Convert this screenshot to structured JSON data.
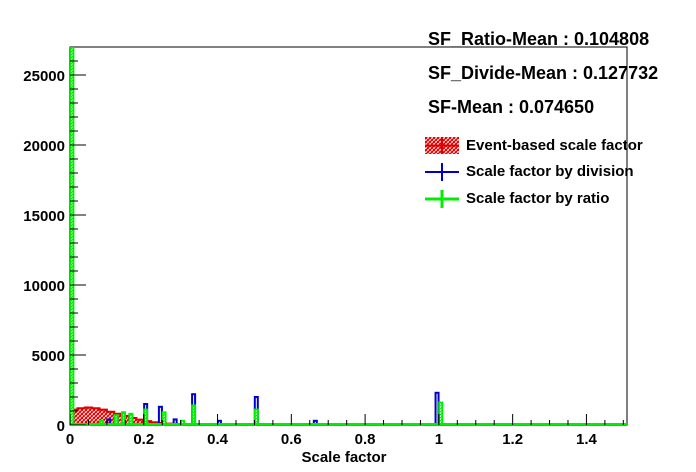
{
  "stats": {
    "ratio_mean": "SF_Ratio-Mean : 0.104808",
    "divide_mean": "SF_Divide-Mean : 0.127732",
    "sf_mean": "SF-Mean : 0.074650"
  },
  "legend": [
    {
      "label": "Event-based scale factor",
      "color": "#dd0000",
      "style": "hatched-box"
    },
    {
      "label": "Scale factor by division",
      "color": "#0000cc",
      "style": "cross"
    },
    {
      "label": "Scale factor by ratio",
      "color": "#00ee00",
      "style": "cross"
    }
  ],
  "chart_data": {
    "type": "histogram",
    "xlabel": "Scale factor",
    "ylabel": "",
    "xlim": [
      0,
      1.51
    ],
    "ylim": [
      0,
      27000
    ],
    "x_ticks": [
      "0",
      "0.2",
      "0.4",
      "0.6",
      "0.8",
      "1",
      "1.2",
      "1.4"
    ],
    "y_ticks": [
      "0",
      "5000",
      "10000",
      "15000",
      "20000",
      "25000"
    ],
    "series": [
      {
        "name": "Event-based scale factor",
        "color": "#dd0000",
        "bins": [
          {
            "x": 0.01,
            "y": 1100
          },
          {
            "x": 0.03,
            "y": 1200
          },
          {
            "x": 0.05,
            "y": 1250
          },
          {
            "x": 0.07,
            "y": 1200
          },
          {
            "x": 0.09,
            "y": 1100
          },
          {
            "x": 0.11,
            "y": 950
          },
          {
            "x": 0.13,
            "y": 800
          },
          {
            "x": 0.15,
            "y": 650
          },
          {
            "x": 0.17,
            "y": 500
          },
          {
            "x": 0.19,
            "y": 380
          },
          {
            "x": 0.21,
            "y": 280
          },
          {
            "x": 0.23,
            "y": 200
          },
          {
            "x": 0.25,
            "y": 140
          },
          {
            "x": 0.27,
            "y": 100
          },
          {
            "x": 0.29,
            "y": 70
          },
          {
            "x": 0.31,
            "y": 50
          },
          {
            "x": 0.33,
            "y": 35
          },
          {
            "x": 0.35,
            "y": 25
          }
        ]
      },
      {
        "name": "Scale factor by division",
        "color": "#0000cc",
        "bins": [
          {
            "x": 0.005,
            "y": 300
          },
          {
            "x": 0.105,
            "y": 400
          },
          {
            "x": 0.125,
            "y": 600
          },
          {
            "x": 0.145,
            "y": 900
          },
          {
            "x": 0.165,
            "y": 700
          },
          {
            "x": 0.205,
            "y": 1500
          },
          {
            "x": 0.245,
            "y": 1300
          },
          {
            "x": 0.285,
            "y": 400
          },
          {
            "x": 0.335,
            "y": 2200
          },
          {
            "x": 0.405,
            "y": 300
          },
          {
            "x": 0.505,
            "y": 2000
          },
          {
            "x": 0.665,
            "y": 300
          },
          {
            "x": 0.995,
            "y": 2300
          }
        ]
      },
      {
        "name": "Scale factor by ratio",
        "color": "#00ee00",
        "bins": [
          {
            "x": 0.005,
            "y": 27000
          },
          {
            "x": 0.085,
            "y": 300
          },
          {
            "x": 0.125,
            "y": 700
          },
          {
            "x": 0.145,
            "y": 900
          },
          {
            "x": 0.165,
            "y": 800
          },
          {
            "x": 0.205,
            "y": 1100
          },
          {
            "x": 0.255,
            "y": 900
          },
          {
            "x": 0.305,
            "y": 300
          },
          {
            "x": 0.335,
            "y": 1400
          },
          {
            "x": 0.505,
            "y": 1100
          },
          {
            "x": 1.005,
            "y": 1600
          }
        ]
      }
    ]
  }
}
